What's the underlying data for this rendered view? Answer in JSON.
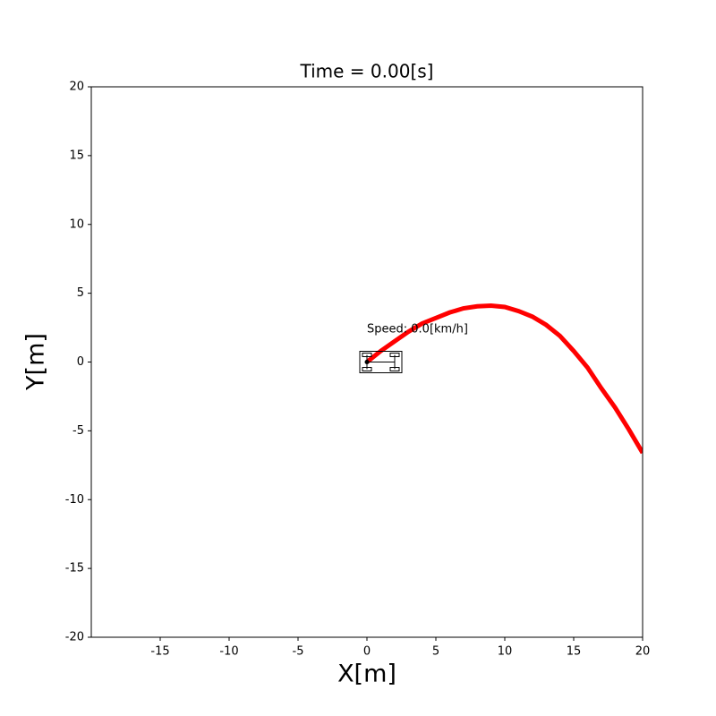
{
  "chart_data": {
    "type": "line",
    "title": "Time = 0.00[s]",
    "xlabel": "X[m]",
    "ylabel": "Y[m]",
    "annotation": "Speed: 0.0[km/h]",
    "x": [
      0,
      1,
      2,
      3,
      4,
      5,
      6,
      7,
      8,
      9,
      10,
      11,
      12,
      13,
      14,
      15,
      16,
      17,
      18,
      19,
      20
    ],
    "values": [
      0,
      0.8,
      1.5,
      2.2,
      2.8,
      3.2,
      3.6,
      3.9,
      4.05,
      4.1,
      4.0,
      3.7,
      3.3,
      2.7,
      1.9,
      0.8,
      -0.4,
      -1.9,
      -3.3,
      -4.9,
      -6.6
    ],
    "color": "#ff0000",
    "xlim": [
      -20,
      20
    ],
    "xticks": [
      -15,
      -10,
      -5,
      0,
      5,
      10,
      15,
      20
    ],
    "ylim": [
      -20,
      20
    ],
    "yticks": [
      -20,
      -15,
      -10,
      -5,
      0,
      5,
      10,
      15,
      20
    ]
  }
}
